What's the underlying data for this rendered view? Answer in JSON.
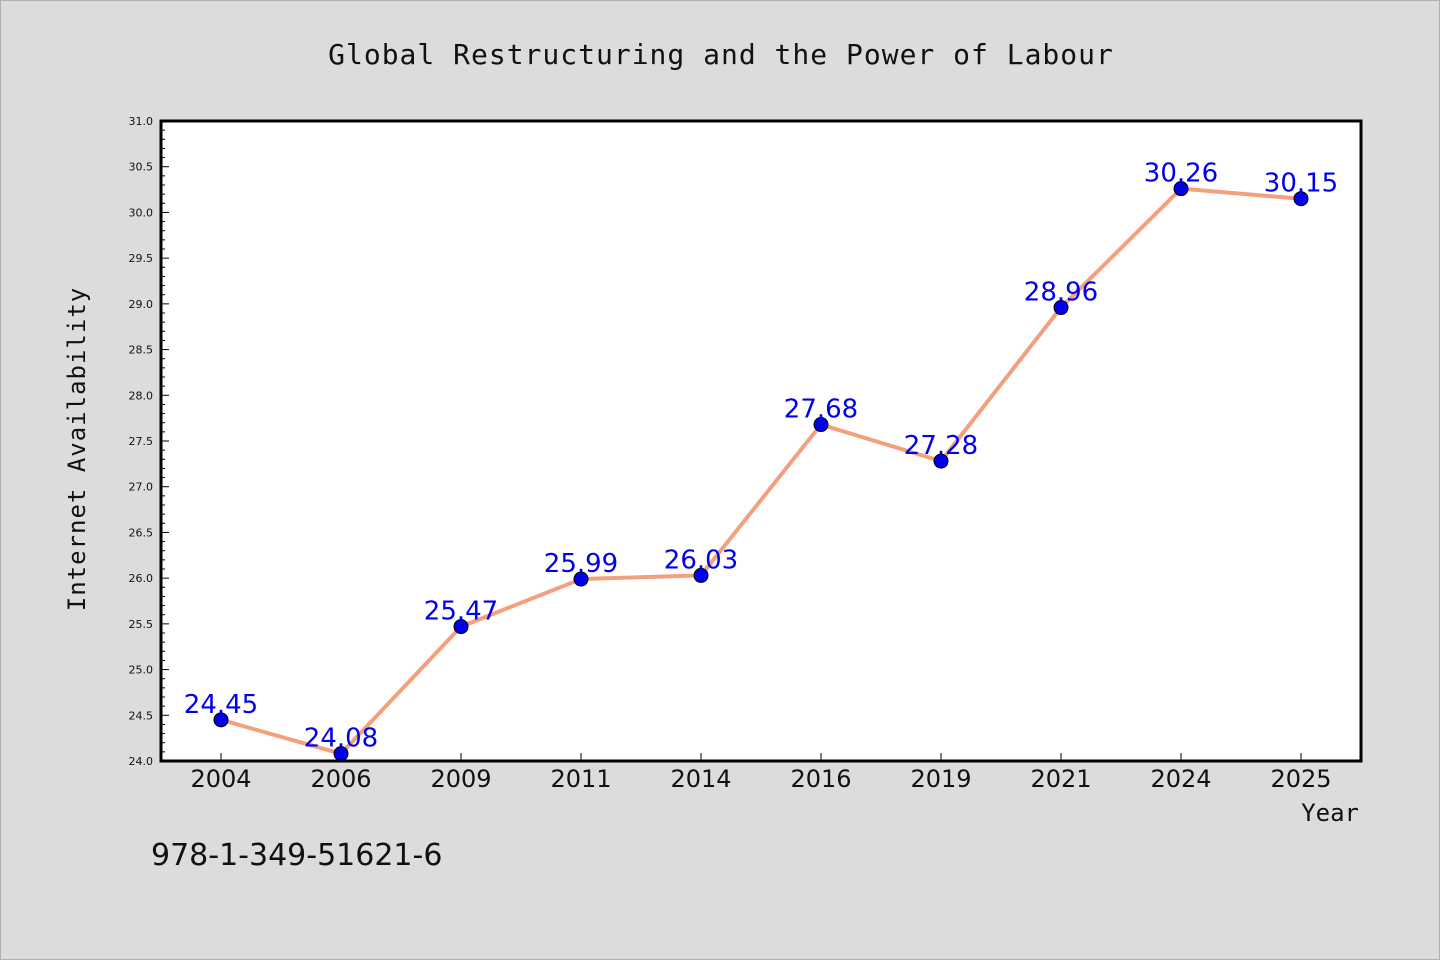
{
  "chart_data": {
    "type": "line",
    "title": "Global Restructuring and the Power of Labour",
    "xlabel": "Year",
    "ylabel": "Internet Availability",
    "x": [
      "2004",
      "2006",
      "2009",
      "2011",
      "2014",
      "2016",
      "2019",
      "2021",
      "2024",
      "2025"
    ],
    "values": [
      24.45,
      24.08,
      25.47,
      25.99,
      26.03,
      27.68,
      27.28,
      28.96,
      30.26,
      30.15
    ],
    "data_labels": [
      "24.45",
      "24.08",
      "25.47",
      "25.99",
      "26.03",
      "27.68",
      "27.28",
      "28.96",
      "30.26",
      "30.15"
    ],
    "ylim": [
      24.0,
      31.0
    ],
    "yticks": [
      "24.0",
      "24.5",
      "25.0",
      "25.5",
      "26.0",
      "26.5",
      "27.0",
      "27.5",
      "28.0",
      "28.5",
      "29.0",
      "29.5",
      "30.0",
      "30.5",
      "31.0"
    ],
    "grid": false,
    "legend": "none",
    "colors": {
      "line": "#f4a07e",
      "marker": "#0000ee",
      "label": "#0000ee",
      "background": "#dcdcdc",
      "plot_background": "#ffffff"
    }
  },
  "annotation": "978-1-349-51621-6"
}
